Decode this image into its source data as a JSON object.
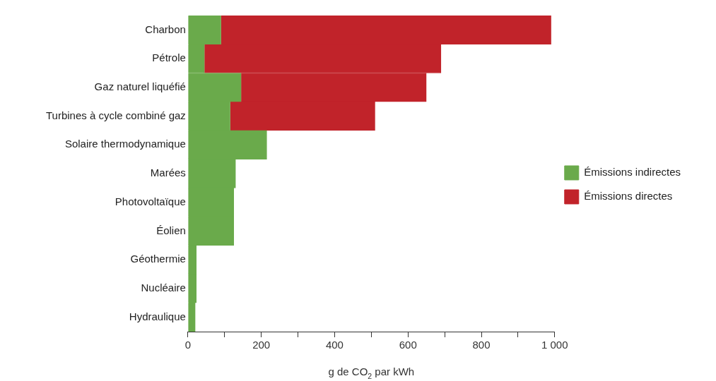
{
  "chart_data": {
    "type": "bar",
    "orientation": "horizontal",
    "stacked": true,
    "categories": [
      "Charbon",
      "Pétrole",
      "Gaz naturel liquéfié",
      "Turbines à cycle combiné gaz",
      "Solaire thermodynamique",
      "Marées",
      "Photovoltaïque",
      "Éolien",
      "Géothermie",
      "Nucléaire",
      "Hydraulique"
    ],
    "series": [
      {
        "name": "Émissions indirectes",
        "color": "#6aaa4b",
        "values": [
          90,
          45,
          145,
          115,
          215,
          130,
          125,
          125,
          23,
          23,
          20
        ]
      },
      {
        "name": "Émissions directes",
        "color": "#c1232a",
        "values": [
          900,
          645,
          505,
          395,
          null,
          null,
          null,
          null,
          null,
          null,
          null
        ]
      }
    ],
    "xlabel": "g de CO$_{2}$ par kWh",
    "xlim": [
      0,
      1000
    ],
    "xticks": [
      0,
      {
        "value": 100,
        "label": null
      },
      200,
      {
        "value": 300,
        "label": null
      },
      400,
      {
        "value": 500,
        "label": null
      },
      600,
      {
        "value": 700,
        "label": null
      },
      800,
      {
        "value": 900,
        "label": null
      },
      {
        "value": 1000,
        "label": "1 000"
      }
    ],
    "grid": false,
    "legend": "right"
  }
}
